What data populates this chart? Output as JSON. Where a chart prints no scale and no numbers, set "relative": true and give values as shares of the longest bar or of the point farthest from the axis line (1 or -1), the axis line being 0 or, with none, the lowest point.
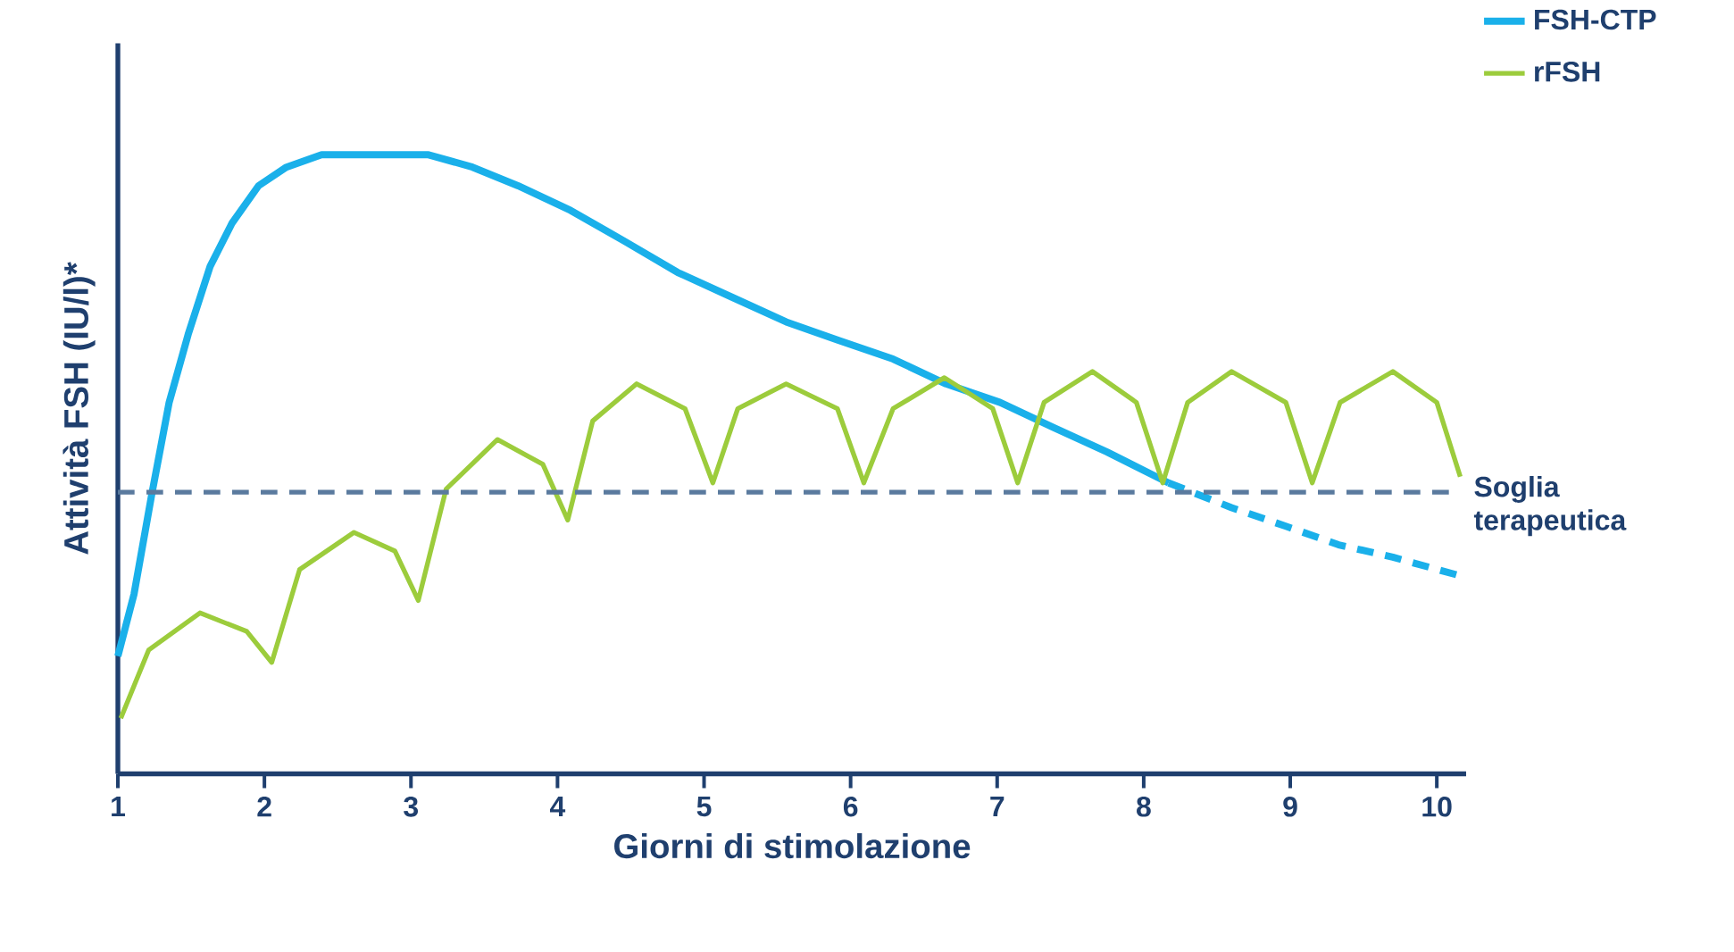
{
  "chart_data": {
    "type": "line",
    "relative": true,
    "xlabel": "Giorni di stimolazione",
    "ylabel": "Attività FSH (IU/l)*",
    "xlim": [
      1,
      10.2
    ],
    "xticks": [
      1,
      2,
      3,
      4,
      5,
      6,
      7,
      8,
      9,
      10
    ],
    "legend": "top right",
    "ref_lines": [
      {
        "axis": "y",
        "value": 0.455,
        "label": "Soglia terapeutica",
        "color": "#5a7a9e",
        "line_style": "dashed"
      }
    ],
    "series": [
      {
        "name": "FSH-CTP",
        "color": "#1ab0ea",
        "x": [
          1,
          1.11,
          1.23,
          1.35,
          1.48,
          1.63,
          1.78,
          1.96,
          2.15,
          2.39,
          2.75,
          3.12,
          3.42,
          3.73,
          4.09,
          4.46,
          4.82,
          5.19,
          5.56,
          5.92,
          6.29,
          6.65,
          7.02,
          7.38,
          7.75,
          8.17
        ],
        "values": [
          0.19,
          0.29,
          0.45,
          0.6,
          0.71,
          0.82,
          0.89,
          0.95,
          0.98,
          1.0,
          1.0,
          1.0,
          0.98,
          0.95,
          0.91,
          0.86,
          0.81,
          0.77,
          0.73,
          0.7,
          0.67,
          0.63,
          0.6,
          0.56,
          0.52,
          0.47
        ]
      },
      {
        "color": "#1ab0ea",
        "line_style": "dashed",
        "x": [
          8.17,
          8.6,
          8.97,
          9.33,
          9.7,
          10.16
        ],
        "values": [
          0.47,
          0.43,
          0.4,
          0.37,
          0.35,
          0.32
        ]
      },
      {
        "name": "rFSH",
        "color": "#9ccc3c",
        "x": [
          1.02,
          1.21,
          1.56,
          1.88,
          2.05,
          2.24,
          2.61,
          2.89,
          3.05,
          3.24,
          3.59,
          3.9,
          4.07,
          4.24,
          4.54,
          4.87,
          5.06,
          5.23,
          5.56,
          5.91,
          6.09,
          6.29,
          6.64,
          6.97,
          7.14,
          7.32,
          7.65,
          7.95,
          8.13,
          8.3,
          8.6,
          8.97,
          9.15,
          9.34,
          9.7,
          10.0,
          10.16
        ],
        "values": [
          0.09,
          0.2,
          0.26,
          0.23,
          0.18,
          0.33,
          0.39,
          0.36,
          0.28,
          0.46,
          0.54,
          0.5,
          0.41,
          0.57,
          0.63,
          0.59,
          0.47,
          0.59,
          0.63,
          0.59,
          0.47,
          0.59,
          0.64,
          0.59,
          0.47,
          0.6,
          0.65,
          0.6,
          0.47,
          0.6,
          0.65,
          0.6,
          0.47,
          0.6,
          0.65,
          0.6,
          0.48
        ]
      }
    ]
  }
}
